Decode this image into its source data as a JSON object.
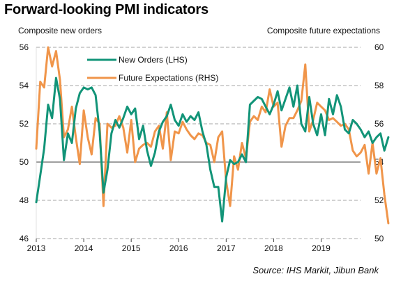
{
  "header": {
    "title": "Forward-looking PMI indicators",
    "left_axis_title": "Composite new orders",
    "right_axis_title": "Composite future expectations"
  },
  "footer": {
    "source": "Source:  IHS Markit, Jibun Bank"
  },
  "chart_data": {
    "type": "line",
    "title": "Forward-looking PMI indicators",
    "ylabel": "Composite new orders",
    "y2label": "Composite future expectations",
    "ylim": [
      46,
      56
    ],
    "y2lim": [
      50,
      60
    ],
    "yticks": [
      46,
      48,
      50,
      52,
      54,
      56
    ],
    "y2ticks": [
      50,
      52,
      54,
      56,
      58,
      60
    ],
    "xticks": [
      "2013",
      "2014",
      "2015",
      "2016",
      "2017",
      "2018",
      "2019"
    ],
    "xlim": [
      2013,
      2019.83
    ],
    "grid": "horizontal dashed",
    "legend": "top-left",
    "colors": {
      "new_orders": "#129478",
      "future_expectations": "#f0954a",
      "grid": "#a6a6a6",
      "zero": "#666666"
    },
    "series": [
      {
        "name": "New Orders (LHS)",
        "axis": "left",
        "x_start": 2013.0,
        "x_step": 0.08333,
        "values": [
          47.9,
          49.3,
          50.7,
          53.0,
          52.3,
          54.4,
          53.3,
          50.1,
          51.5,
          51.0,
          52.8,
          53.6,
          53.9,
          53.8,
          53.9,
          53.5,
          51.6,
          48.4,
          49.6,
          51.5,
          52.2,
          51.8,
          52.3,
          52.9,
          52.5,
          52.8,
          51.2,
          51.9,
          50.6,
          49.8,
          50.5,
          51.6,
          52.1,
          52.4,
          53.0,
          52.2,
          51.9,
          52.5,
          52.1,
          52.4,
          52.2,
          52.6,
          51.6,
          50.9,
          49.6,
          48.7,
          48.7,
          46.9,
          49.2,
          50.1,
          49.9,
          50.0,
          50.4,
          50.0,
          53.0,
          53.2,
          53.4,
          53.3,
          52.9,
          52.5,
          53.0,
          53.7,
          52.7,
          53.3,
          53.9,
          52.9,
          54.0,
          52.0,
          51.6,
          53.4,
          52.0,
          51.4,
          52.5,
          51.4,
          53.3,
          52.5,
          53.5,
          52.9,
          51.7,
          51.5,
          52.2,
          52.0,
          51.7,
          51.3,
          51.6,
          51.0,
          51.3,
          51.5,
          50.6,
          51.3
        ]
      },
      {
        "name": "Future Expectations (RHS)",
        "axis": "right",
        "x_start": 2013.0,
        "x_step": 0.08333,
        "values": [
          54.7,
          58.2,
          57.9,
          60.0,
          59.0,
          59.8,
          58.3,
          55.3,
          55.7,
          56.9,
          55.3,
          53.9,
          56.7,
          55.3,
          54.4,
          56.3,
          56.0,
          51.7,
          56.0,
          55.8,
          55.9,
          56.4,
          55.8,
          54.5,
          56.2,
          54.0,
          54.7,
          54.9,
          55.0,
          54.8,
          55.6,
          55.9,
          54.7,
          56.6,
          54.1,
          55.6,
          55.5,
          56.1,
          55.7,
          55.4,
          55.2,
          55.5,
          55.4,
          55.0,
          54.9,
          54.0,
          55.3,
          55.6,
          53.0,
          51.7,
          54.3,
          53.6,
          55.0,
          54.2,
          56.1,
          56.4,
          56.2,
          56.9,
          56.6,
          57.8,
          56.9,
          57.1,
          54.8,
          55.9,
          56.3,
          56.3,
          56.7,
          57.2,
          59.1,
          55.6,
          56.2,
          57.1,
          56.9,
          56.7,
          56.2,
          56.3,
          56.1,
          55.9,
          56.0,
          55.7,
          54.6,
          54.3,
          54.5,
          54.9,
          53.4,
          55.0,
          53.4,
          54.2,
          52.3,
          50.8
        ]
      }
    ]
  }
}
